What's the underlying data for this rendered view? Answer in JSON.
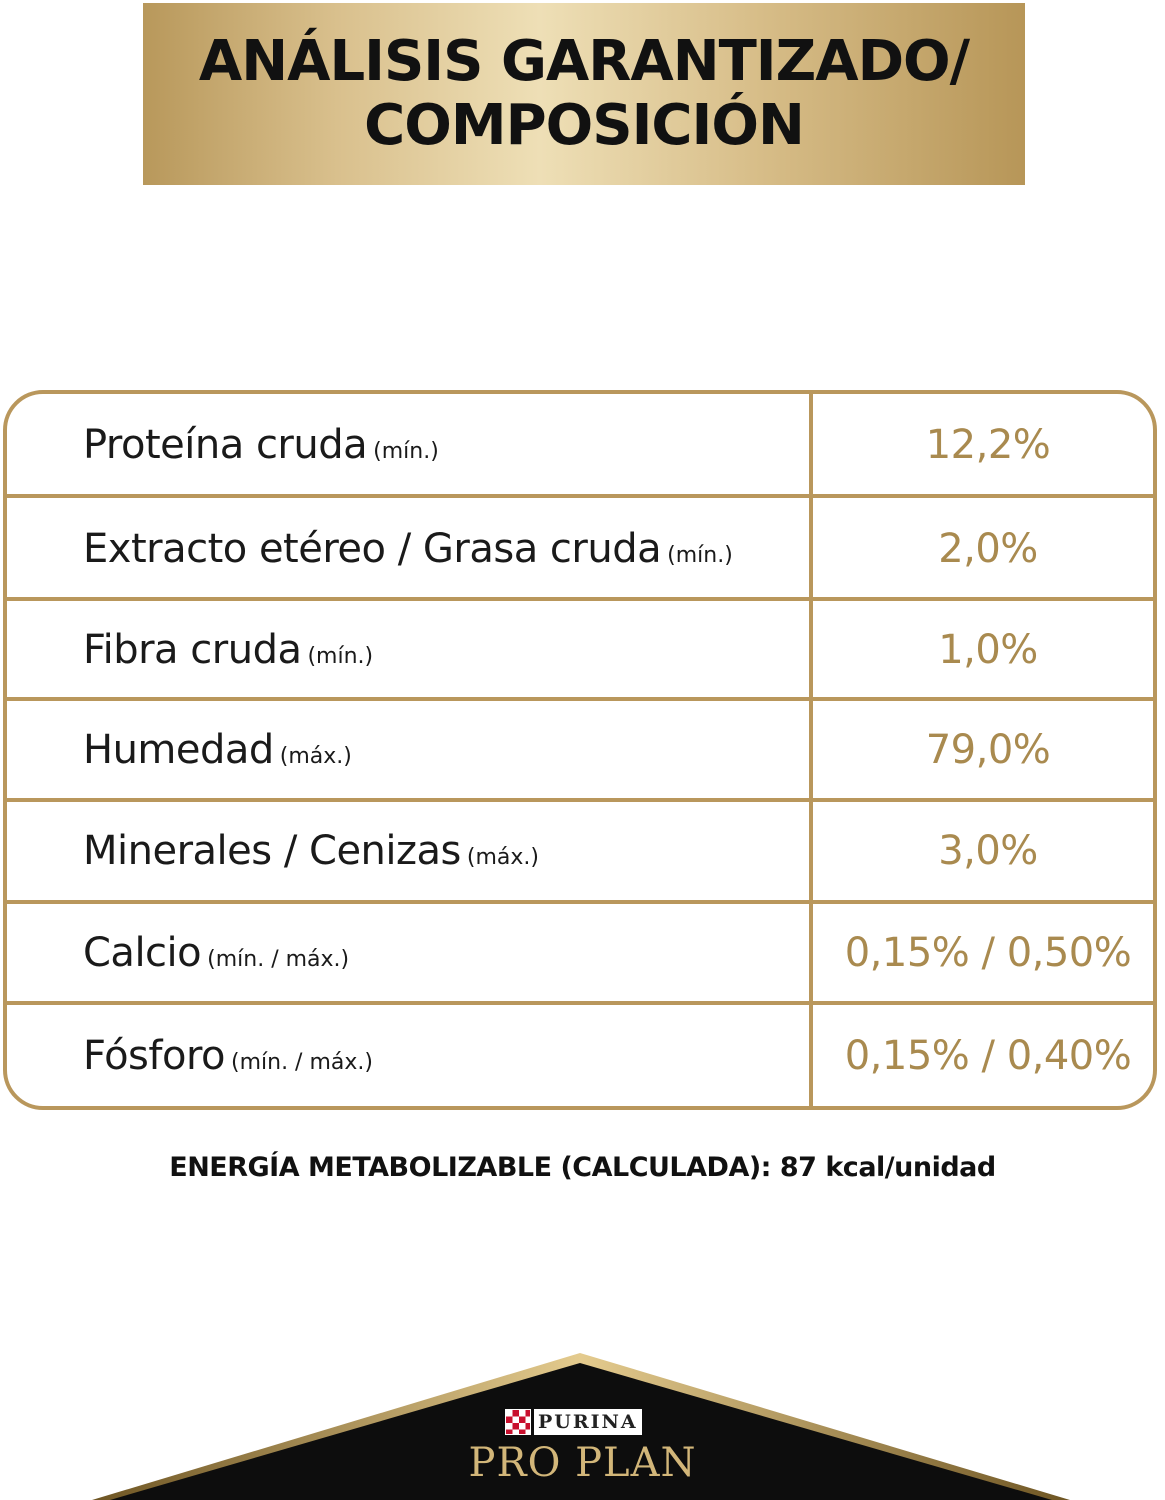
{
  "title": {
    "line1": "ANÁLISIS GARANTIZADO/",
    "line2": "COMPOSICIÓN"
  },
  "table": {
    "rows": [
      {
        "label": "Proteína cruda",
        "qualifier": "(mín.)",
        "value": "12,2%"
      },
      {
        "label": "Extracto etéreo / Grasa cruda",
        "qualifier": "(mín.)",
        "value": "2,0%"
      },
      {
        "label": "Fibra cruda",
        "qualifier": "(mín.)",
        "value": "1,0%"
      },
      {
        "label": "Humedad",
        "qualifier": "(máx.)",
        "value": "79,0%"
      },
      {
        "label": "Minerales / Cenizas",
        "qualifier": "(máx.)",
        "value": "3,0%"
      },
      {
        "label": "Calcio",
        "qualifier": "(mín. / máx.)",
        "value": "0,15% / 0,50%"
      },
      {
        "label": "Fósforo",
        "qualifier": "(mín. / máx.)",
        "value": "0,15% / 0,40%"
      }
    ]
  },
  "energy": {
    "text": "ENERGÍA METABOLIZABLE (CALCULADA): 87  kcal/unidad"
  },
  "brand": {
    "purina": "PURINA",
    "proplan": "PRO PLAN"
  },
  "colors": {
    "gold": "#b9975c",
    "value_text": "#a98a4f",
    "text": "#1a1a1a",
    "logo_dark": "#0d0d0d",
    "purina_red": "#c8102e"
  }
}
